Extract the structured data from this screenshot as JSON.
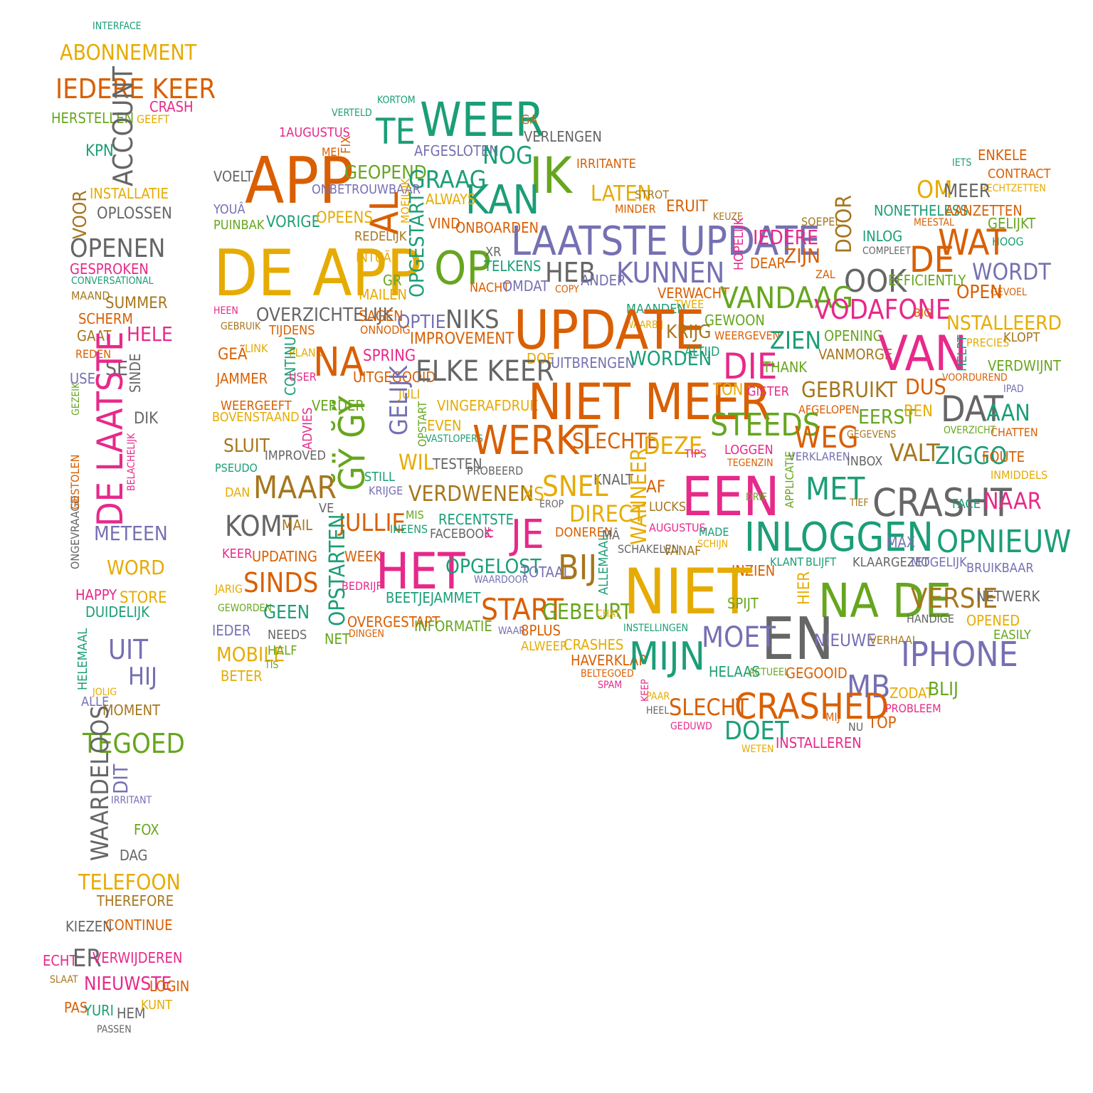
{
  "palette": {
    "green": "#1b9e77",
    "orange": "#d95f02",
    "purple": "#7570b3",
    "pink": "#e7298a",
    "lime": "#66a61e",
    "gold": "#e6ab02",
    "brown": "#a6761d",
    "gray": "#666666"
  },
  "words": [
    "INTERFACE",
    "ABONNEMENT",
    "IEDERE KEER",
    "CRASH",
    "HERSTELLEN",
    "GEEFT",
    "ACCOUNT",
    "KPN",
    "INSTALLATIE",
    "VOOR",
    "OPLOSSEN",
    "OPENEN",
    "GESPROKEN",
    "CONVERSATIONAL",
    "MAAND",
    "SUMMER",
    "SCHERM",
    "GAAT",
    "HELE",
    "REDEN",
    "USE",
    "SE",
    "SINDE",
    "GEZEIK",
    "DE LAATSTE",
    "DIK",
    "BELACHELIJK",
    "ONGEVRAAGD",
    "GESTOLEN",
    "METEEN",
    "WORD",
    "HAPPY",
    "STORE",
    "DUIDELIJK",
    "UIT",
    "HELEMAAL",
    "HIJ",
    "JOLIG",
    "ALLE",
    "MOMENT",
    "TEGOED",
    "WAARDELOOS",
    "DIT",
    "IRRITANT",
    "FOX",
    "DAG",
    "TELEFOON",
    "THEREFORE",
    "KIEZEN",
    "CONTINUE",
    "ECHT",
    "ER",
    "VERWIJDEREN",
    "SLAAT",
    "NIEUWSTE",
    "LOGIN",
    "PAS",
    "YURI",
    "HEM",
    "KUNT",
    "PASSEN",
    "KORTOM",
    "VERTELD",
    "1AUGUSTUS",
    "FIX",
    "MEI",
    "TE",
    "WEER",
    "GA",
    "VERLENGEN",
    "AFGESLOTEN",
    "NOG",
    "IK",
    "IRRITANTE",
    "VOELT",
    "APP",
    "GEOPEND",
    "GRAAG",
    "KAN",
    "YOUÂ",
    "ONBETROUWBAAR",
    "AL",
    "MOEILIJK",
    "ALWAYS",
    "LATEN",
    "STROT",
    "MINDER",
    "ERUIT",
    "PUINBAK",
    "VORIGE",
    "OPEENS",
    "VIND",
    "ONBOARDEN",
    "REDELIJK",
    "DE APP",
    "INTUÃ",
    "OPGESTART",
    "OP",
    "XR",
    "TELKENS",
    "LAATSTE UPDATE",
    "HEB",
    "ANDER",
    "KUNNEN",
    "NACHT",
    "OMDAT",
    "COPY",
    "GR",
    "MAILEN",
    "HEEN",
    "OVERZICHTELIJK",
    "SAGEN",
    "OPTIE",
    "NIKS",
    "VERWACHT",
    "TWEE",
    "MAANDEN",
    "WAARBIJ",
    "GEBRUIK",
    "TIJDENS",
    "ONNODIG",
    "IMPROVEMENT",
    "UPDATE",
    "KRIJG",
    "GEÃ",
    "LINK",
    "PLANK",
    "NA",
    "SPRING",
    "DOE",
    "UITBRENGEN",
    "WORDEN",
    "ALTIJD",
    "JAMMER",
    "CONTINU",
    "USER",
    "UITGEGOOID",
    "ELKE KEER",
    "JULI",
    "WEERGEEFT",
    "BOVENSTAAND",
    "VERDER",
    "VINGERAFDRUK",
    "NIET MEER",
    "ADVIES",
    "GELIJK",
    "OPSTART",
    "EVEN",
    "VASTLOPERS",
    "WERKT",
    "SLECHTE",
    "DEZE",
    "TIPS",
    "SLUIT",
    "IMPROVED",
    "ĞŸ ĞŸ",
    "TESTEN",
    "WIL",
    "PROBEERD",
    "PSEUDO",
    "STILL",
    "KRIJGE",
    "KNALT",
    "DAN",
    "MAAR",
    "VERDWENEN",
    "XS",
    "SNEL",
    "AF",
    "EROP",
    "WANNEER",
    "VE",
    "DIRECT",
    "LUCKS",
    "MIS",
    "RECENTSTE",
    "KOMT",
    "MAIL",
    "JULLIE",
    "INEENS",
    "FACEBOOK",
    "JE",
    "DONEREN",
    "MÂ",
    "AUGUSTUS",
    "FF",
    "KEER",
    "UPDATING",
    "WEEK",
    "HET",
    "OPGELOST",
    "TOTAAL",
    "BIJ",
    "SCHAKELEN",
    "VANAF",
    "JARIG",
    "SINDS",
    "BEDRIJF",
    "WAARDOOR",
    "ALLEMAAL",
    "OPSTARTEN",
    "BEETJEJAMMET",
    "START",
    "GEWORDEN",
    "GEEN",
    "GEBEURT",
    "CHAT",
    "OVERGESTAPT",
    "INFORMATIE",
    "IEDER",
    "NEEDS",
    "DINGEN",
    "WAAR",
    "8PLUS",
    "NET",
    "ALWEER",
    "CRASHES",
    "MOBILE",
    "HALF",
    "HAVERKLAP",
    "TIS",
    "BELTEGOED",
    "BETER",
    "SPAM",
    "ENKELE",
    "IETS",
    "CONTRACT",
    "RECHTZETTEN",
    "OM",
    "MEER",
    "NONETHELESS",
    "AANZETTEN",
    "KEUZE",
    "SOEPEL",
    "DOOR",
    "MEESTAL",
    "GELIJKT",
    "IEDERE",
    "INLOG",
    "HOOG",
    "COMPLEET",
    "WAT",
    "DE",
    "HOPELIJK",
    "DEAR",
    "ZIJN",
    "ZAL",
    "OOK",
    "EFFICIENTLY",
    "WORDT",
    "OPEN",
    "GEVOEL",
    "VANDAAG",
    "VODAFONE",
    "BIG",
    "GEWOON",
    "WEERGEVEN",
    "ZIEN",
    "OPENING",
    "NSTALLEERD",
    "VANMORGE",
    "VAN",
    "PRECIES",
    "KLOPT",
    "DIE",
    "THANK",
    "HELPT",
    "VERDWIJNT",
    "VOORDUREND",
    "TON",
    "GISTER",
    "GEBRUIKT",
    "DUS",
    "IPAD",
    "DAT",
    "AFGELOPEN",
    "EERST",
    "BEN",
    "AAN",
    "OVERZICHT",
    "CHATTEN",
    "STEEDS",
    "WEG",
    "GEGEVENS",
    "LOGGEN",
    "TEGENZIN",
    "VERKLAREN",
    "INBOX",
    "VALT",
    "ZIGGO",
    "FOUTE",
    "INMIDDELS",
    "APPLICATIE",
    "EEN",
    "DRIE",
    "MET",
    "TIEF",
    "CRASHT",
    "FACE",
    "NAAR",
    "MADE",
    "SCHIJN",
    "INLOGGEN",
    "MAX",
    "OPNIEUW",
    "INZIEN",
    "KLANT",
    "BLIJFT",
    "KLAARGEZET",
    "MOGELIJK",
    "BRUIKBAAR",
    "NIET",
    "HIER",
    "NA DE",
    "VERSIE",
    "NETWERK",
    "SPIJT",
    "HANDIGE",
    "EN",
    "OPENED",
    "INSTELLINGEN",
    "MOET",
    "NIEUWE",
    "VERHAAL",
    "EASILY",
    "MIJN",
    "IPHONE",
    "HELAAS",
    "ACTUEEL",
    "GEGOOID",
    "MB",
    "ZODAT",
    "BLIJ",
    "KEEP",
    "PAAR",
    "PROBLEEM",
    "HEEL",
    "SLECHT",
    "CRASHED",
    "MIJ",
    "GEDUWD",
    "DOET",
    "NU",
    "TOP",
    "WETEN",
    "INSTALLEREN"
  ]
}
